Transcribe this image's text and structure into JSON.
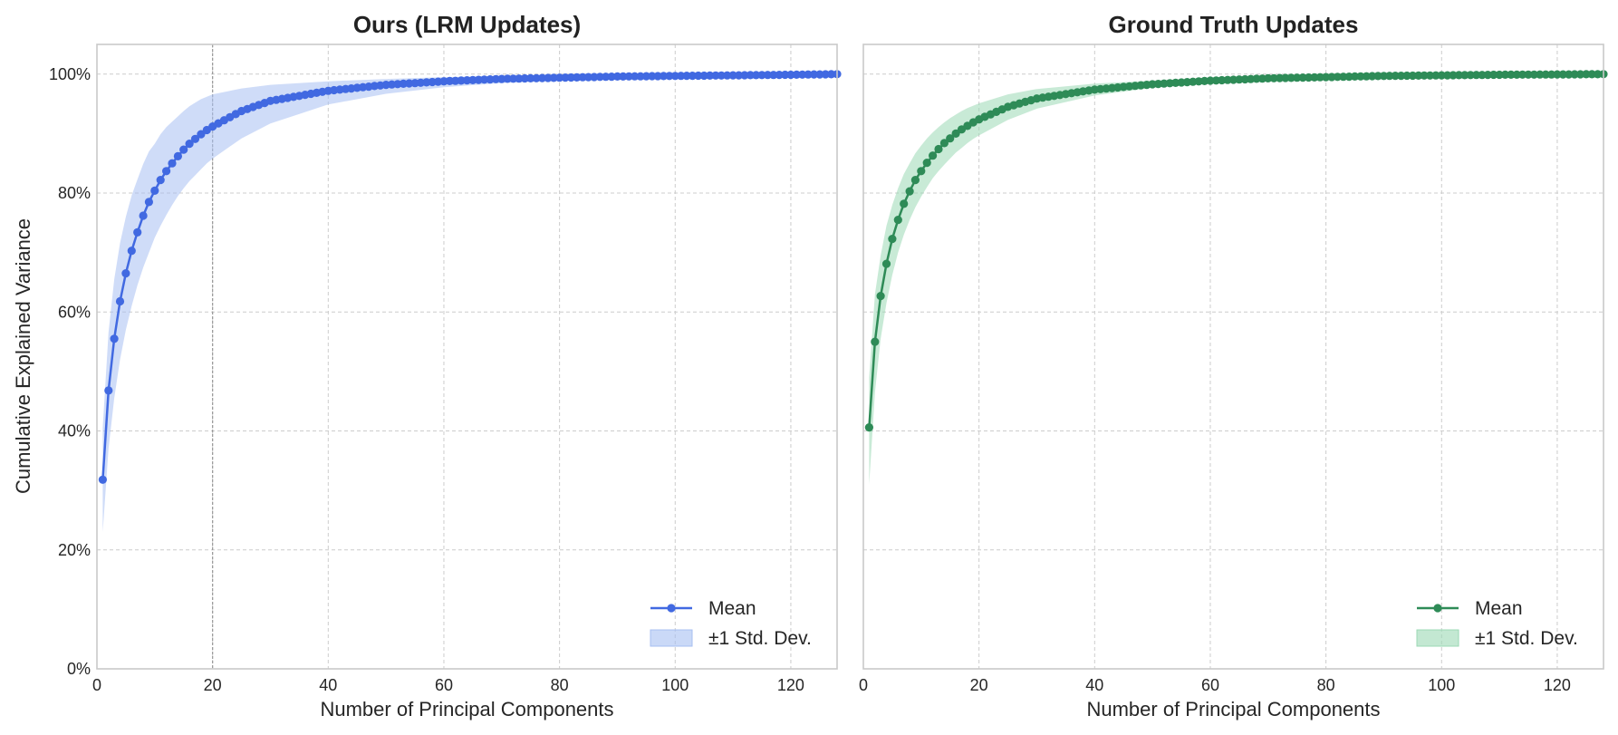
{
  "y_axis_label": "Cumulative Explained Variance",
  "chart_data": [
    {
      "type": "line",
      "title": "Ours (LRM Updates)",
      "xlabel": "Number of Principal Components",
      "ylabel": "Cumulative Explained Variance",
      "xlim": [
        0,
        128
      ],
      "ylim": [
        0,
        105
      ],
      "x_ticks": [
        0,
        20,
        40,
        60,
        80,
        100,
        120
      ],
      "y_ticks": [
        "0%",
        "20%",
        "40%",
        "60%",
        "80%",
        "100%"
      ],
      "grid": true,
      "legend_position": "lower right",
      "highlight_vline_x": 20,
      "color": "#4169E1",
      "band_color": "#A7BFF2",
      "x": [
        1,
        2,
        3,
        4,
        5,
        6,
        7,
        8,
        9,
        10,
        11,
        12,
        13,
        14,
        15,
        16,
        17,
        18,
        19,
        20,
        25,
        30,
        40,
        50,
        60,
        70,
        80,
        90,
        100,
        110,
        120,
        128
      ],
      "series": [
        {
          "name": "Mean",
          "values": [
            31.8,
            46.8,
            55.5,
            61.8,
            66.5,
            70.3,
            73.4,
            76.2,
            78.5,
            80.4,
            82.2,
            83.7,
            85.0,
            86.2,
            87.3,
            88.3,
            89.1,
            89.9,
            90.6,
            91.2,
            93.8,
            95.5,
            97.2,
            98.2,
            98.8,
            99.2,
            99.4,
            99.6,
            99.7,
            99.8,
            99.9,
            100.0
          ]
        },
        {
          "name": "±1 Std. Dev.",
          "lower": [
            23.0,
            37.0,
            45.5,
            52.0,
            57.0,
            61.0,
            64.5,
            67.5,
            70.0,
            72.5,
            74.5,
            76.3,
            78.0,
            79.5,
            80.8,
            82.0,
            83.0,
            84.0,
            85.0,
            85.8,
            89.2,
            91.7,
            94.9,
            96.7,
            97.8,
            98.5,
            99.0,
            99.3,
            99.5,
            99.7,
            99.8,
            100.0
          ],
          "upper": [
            40.6,
            56.6,
            65.5,
            71.6,
            76.0,
            79.6,
            82.3,
            84.9,
            87.0,
            88.3,
            89.9,
            91.1,
            92.0,
            92.9,
            93.8,
            94.6,
            95.2,
            95.8,
            96.2,
            96.6,
            97.6,
            98.2,
            98.8,
            99.2,
            99.5,
            99.7,
            99.8,
            99.9,
            99.95,
            100.0,
            100.0,
            100.0
          ]
        }
      ]
    },
    {
      "type": "line",
      "title": "Ground Truth Updates",
      "xlabel": "Number of Principal Components",
      "ylabel": "",
      "xlim": [
        0,
        128
      ],
      "ylim": [
        0,
        105
      ],
      "x_ticks": [
        0,
        20,
        40,
        60,
        80,
        100,
        120
      ],
      "y_ticks": [
        "0%",
        "20%",
        "40%",
        "60%",
        "80%",
        "100%"
      ],
      "grid": true,
      "legend_position": "lower right",
      "color": "#2E8B57",
      "band_color": "#9BD8B4",
      "x": [
        1,
        2,
        3,
        4,
        5,
        6,
        7,
        8,
        9,
        10,
        11,
        12,
        13,
        14,
        15,
        16,
        17,
        18,
        19,
        20,
        25,
        30,
        40,
        50,
        60,
        70,
        80,
        90,
        100,
        110,
        120,
        128
      ],
      "series": [
        {
          "name": "Mean",
          "values": [
            40.6,
            55.0,
            62.7,
            68.1,
            72.3,
            75.5,
            78.2,
            80.3,
            82.2,
            83.7,
            85.1,
            86.3,
            87.4,
            88.4,
            89.2,
            90.0,
            90.7,
            91.3,
            91.9,
            92.4,
            94.5,
            95.9,
            97.4,
            98.3,
            98.9,
            99.3,
            99.5,
            99.7,
            99.8,
            99.9,
            99.95,
            100.0
          ]
        },
        {
          "name": "±1 Std. Dev.",
          "lower": [
            31.0,
            46.5,
            55.5,
            61.5,
            66.2,
            70.0,
            73.0,
            75.5,
            77.6,
            79.4,
            81.0,
            82.5,
            83.7,
            84.8,
            85.8,
            86.8,
            87.6,
            88.4,
            89.1,
            89.7,
            92.3,
            94.2,
            96.4,
            97.7,
            98.5,
            99.0,
            99.3,
            99.5,
            99.7,
            99.8,
            99.9,
            100.0
          ],
          "upper": [
            49.0,
            63.0,
            69.5,
            74.5,
            78.0,
            80.8,
            83.2,
            85.0,
            86.7,
            88.0,
            89.2,
            90.2,
            91.1,
            91.9,
            92.6,
            93.2,
            93.8,
            94.3,
            94.7,
            95.1,
            96.6,
            97.5,
            98.4,
            98.9,
            99.3,
            99.6,
            99.7,
            99.8,
            99.9,
            100.0,
            100.0,
            100.0
          ]
        }
      ]
    }
  ]
}
